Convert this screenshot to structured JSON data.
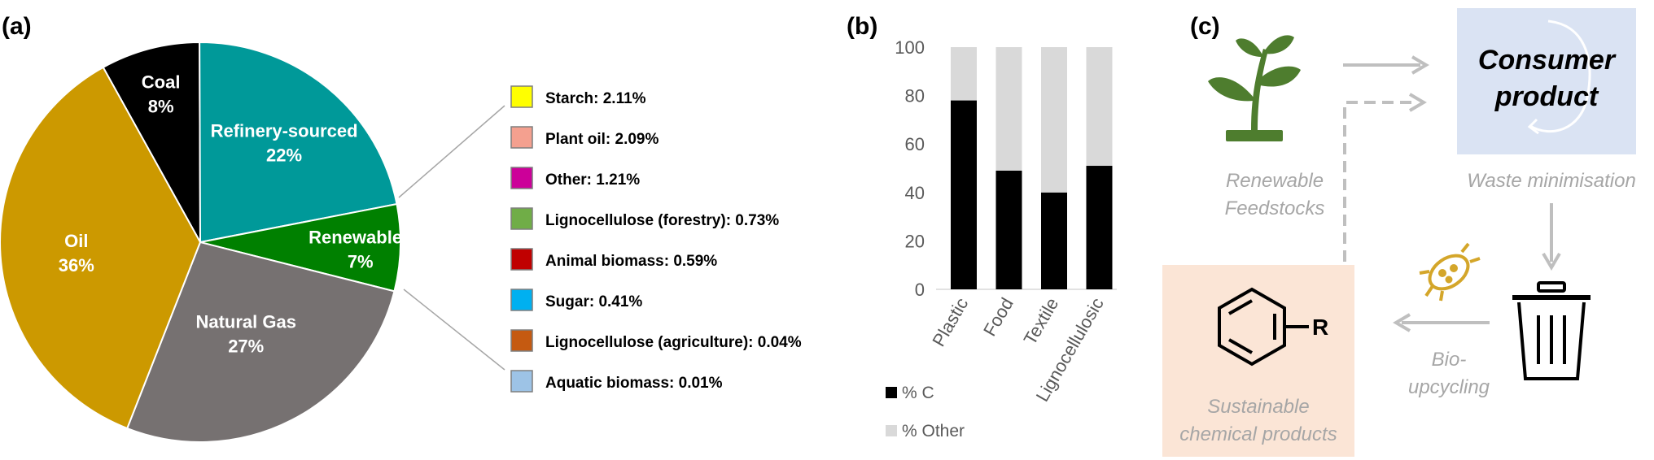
{
  "panels": {
    "a": "(a)",
    "b": "(b)",
    "c": "(c)"
  },
  "chart_data": [
    {
      "type": "pie",
      "slices": [
        {
          "label": "Coal",
          "value_label": "8%",
          "value": 8,
          "color": "#000000"
        },
        {
          "label": "Refinery-sourced",
          "value_label": "22%",
          "value": 22,
          "color": "#009999"
        },
        {
          "label": "Renewables",
          "value_label": "7%",
          "value": 7,
          "color": "#008000"
        },
        {
          "label": "Natural Gas",
          "value_label": "27%",
          "value": 27,
          "color": "#767171"
        },
        {
          "label": "Oil",
          "value_label": "36%",
          "value": 36,
          "color": "#CC9900"
        }
      ],
      "breakdown_of": "Renewables",
      "breakdown": [
        {
          "label": "Starch: 2.11%",
          "value": 2.11,
          "color": "#FFFF00"
        },
        {
          "label": "Plant oil: 2.09%",
          "value": 2.09,
          "color": "#F4A08F"
        },
        {
          "label": "Other: 1.21%",
          "value": 1.21,
          "color": "#CC0099"
        },
        {
          "label": "Lignocellulose (forestry): 0.73%",
          "value": 0.73,
          "color": "#70AD47"
        },
        {
          "label": "Animal biomass: 0.59%",
          "value": 0.59,
          "color": "#C00000"
        },
        {
          "label": "Sugar: 0.41%",
          "value": 0.41,
          "color": "#00B0F0"
        },
        {
          "label": "Lignocellulose (agriculture): 0.04%",
          "value": 0.04,
          "color": "#C55A11"
        },
        {
          "label": "Aquatic biomass: 0.01%",
          "value": 0.01,
          "color": "#9DC3E6"
        }
      ]
    },
    {
      "type": "bar",
      "stacked": true,
      "categories": [
        "Plastic",
        "Food",
        "Textile",
        "Lignocellulosic"
      ],
      "series": [
        {
          "name": "% C",
          "values": [
            78,
            49,
            40,
            51
          ],
          "color": "#000000"
        },
        {
          "name": "% Other",
          "values": [
            22,
            51,
            60,
            49
          ],
          "color": "#D9D9D9"
        }
      ],
      "ylim": [
        0,
        100
      ],
      "yticks": [
        "0",
        "20",
        "40",
        "60",
        "80",
        "100"
      ],
      "legend": "bottom"
    }
  ],
  "flow": {
    "renewable": [
      "Renewable",
      "Feedstocks"
    ],
    "consumer": [
      "Consumer",
      "product"
    ],
    "waste": "Waste minimisation",
    "bio": [
      "Bio-",
      "upcycling"
    ],
    "sustainable": [
      "Sustainable",
      "chemical products"
    ],
    "r_group": "R",
    "icons": [
      "seedling-icon",
      "recycle-loop-icon",
      "trash-bin-icon",
      "bacterium-icon",
      "benzene-ring-icon"
    ],
    "colors": {
      "consumer_box": "#DAE3F3",
      "sustainable_box": "#FBE5D6",
      "plant": "#4E7D2E",
      "bacteria": "#D4A62A",
      "arrow": "#BFBFBF"
    }
  }
}
